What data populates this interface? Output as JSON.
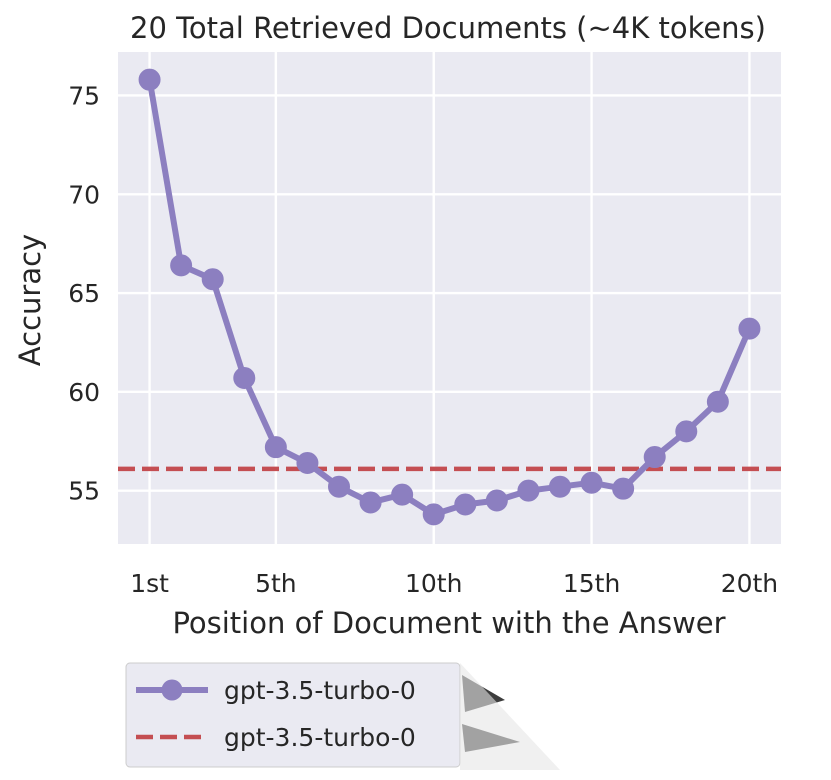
{
  "chart_data": {
    "type": "line",
    "title": "20 Total Retrieved Documents (~4K tokens)",
    "xlabel": "Position of Document with the Answer",
    "ylabel": "Accuracy",
    "xlim": [
      0,
      21
    ],
    "ylim": [
      52.3,
      77.2
    ],
    "x_ticks": [
      {
        "value": 1,
        "label": "1st"
      },
      {
        "value": 5,
        "label": "5th"
      },
      {
        "value": 10,
        "label": "10th"
      },
      {
        "value": 15,
        "label": "15th"
      },
      {
        "value": 20,
        "label": "20th"
      }
    ],
    "y_ticks": [
      55,
      60,
      65,
      70,
      75
    ],
    "grid": true,
    "legend_position": "below",
    "series": [
      {
        "name": "gpt-3.5-turbo-0",
        "style": "line-marker",
        "color": "#8c7fc0",
        "x": [
          1,
          2,
          3,
          4,
          5,
          6,
          7,
          8,
          9,
          10,
          11,
          12,
          13,
          14,
          15,
          16,
          17,
          18,
          19,
          20
        ],
        "y": [
          75.8,
          66.4,
          65.7,
          60.7,
          57.2,
          56.4,
          55.2,
          54.4,
          54.8,
          53.8,
          54.3,
          54.5,
          55.0,
          55.2,
          55.4,
          55.1,
          56.7,
          58.0,
          59.5,
          63.2
        ]
      },
      {
        "name": "gpt-3.5-turbo-0",
        "style": "dashed-reference",
        "color": "#c44e52",
        "y_constant": 56.1
      }
    ]
  }
}
